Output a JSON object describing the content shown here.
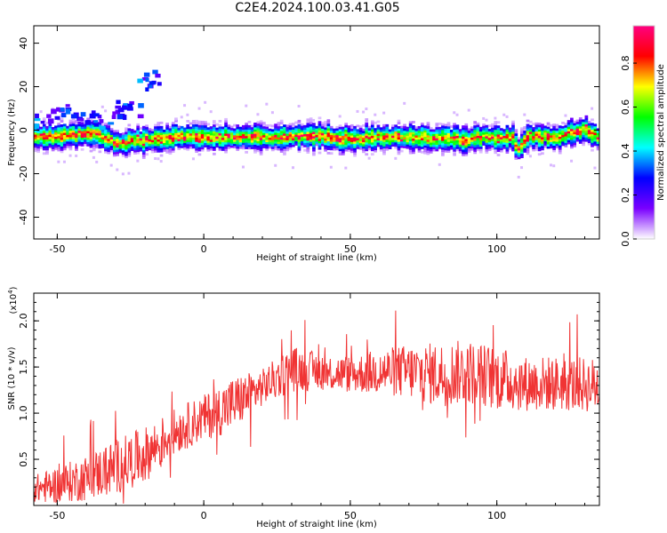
{
  "figure": {
    "title": "C2E4.2024.100.03.41.G05"
  },
  "chart_data": [
    {
      "type": "heatmap",
      "xlabel": "Height of straight line (km)",
      "ylabel": "Frequency (Hz)",
      "xlim": [
        -58,
        135
      ],
      "ylim": [
        -50,
        48
      ],
      "x_ticks": [
        -50,
        0,
        50,
        100
      ],
      "y_ticks": [
        -40,
        -20,
        0,
        20,
        40
      ],
      "colorbar": {
        "label": "Normalized spectral amplitude",
        "range": [
          0.0,
          0.97
        ],
        "ticks": [
          "0.0",
          "0.2",
          "0.4",
          "0.6",
          "0.8"
        ],
        "tick_values": [
          0.0,
          0.2,
          0.4,
          0.6,
          0.8
        ],
        "colors": [
          "#ffffff",
          "#7a00ff",
          "#0000ff",
          "#00ffff",
          "#00ff00",
          "#ffff00",
          "#ff0000",
          "#ff0080"
        ]
      },
      "ridge_center": {
        "x": [
          -58,
          -50,
          -45,
          -40,
          -35,
          -30,
          -25,
          -20,
          -10,
          0,
          10,
          20,
          30,
          40,
          50,
          60,
          70,
          80,
          90,
          95,
          100,
          105,
          107,
          110,
          120,
          125,
          130,
          135
        ],
        "y": [
          -3,
          -3,
          -2,
          -1,
          -3,
          -6,
          -5,
          -4,
          -3,
          -3,
          -3,
          -3,
          -3,
          -3,
          -4,
          -3,
          -3,
          -4,
          -4,
          -3,
          -3,
          -4,
          -8,
          -3,
          -3,
          -1,
          0,
          -4
        ]
      },
      "scattered_feature": {
        "x": [
          -55,
          -50,
          -45,
          -40,
          -35,
          -30,
          -28,
          -25,
          -20,
          -18
        ],
        "y": [
          6,
          8,
          9,
          7,
          5,
          8,
          12,
          10,
          22,
          25
        ]
      }
    },
    {
      "type": "line",
      "xlabel": "Height of straight line (km)",
      "ylabel": "SNR (10 * v/v)",
      "y_scale_label": "(x10",
      "y_scale_exp": "4",
      "y_scale_close": ")",
      "xlim": [
        -58,
        135
      ],
      "ylim": [
        0,
        2.3
      ],
      "x_ticks": [
        -50,
        0,
        50,
        100
      ],
      "y_ticks": [
        "0.5",
        "1.0",
        "1.5",
        "2.0"
      ],
      "y_tick_values": [
        0.5,
        1.0,
        1.5,
        2.0
      ],
      "series": [
        {
          "color": "#f03434",
          "trend_x": [
            -58,
            -50,
            -40,
            -30,
            -20,
            -10,
            0,
            10,
            20,
            30,
            40,
            50,
            60,
            70,
            80,
            90,
            100,
            110,
            120,
            135
          ],
          "trend_y": [
            0.18,
            0.22,
            0.3,
            0.42,
            0.55,
            0.8,
            0.95,
            1.1,
            1.28,
            1.48,
            1.45,
            1.42,
            1.45,
            1.45,
            1.42,
            1.45,
            1.38,
            1.32,
            1.32,
            1.3
          ],
          "noise_amplitude": [
            0.15,
            0.2,
            0.25,
            0.3,
            0.3,
            0.25,
            0.25,
            0.3,
            0.2,
            0.25,
            0.2,
            0.2,
            0.25,
            0.3,
            0.35,
            0.35,
            0.35,
            0.3,
            0.3,
            0.3
          ]
        }
      ]
    }
  ]
}
